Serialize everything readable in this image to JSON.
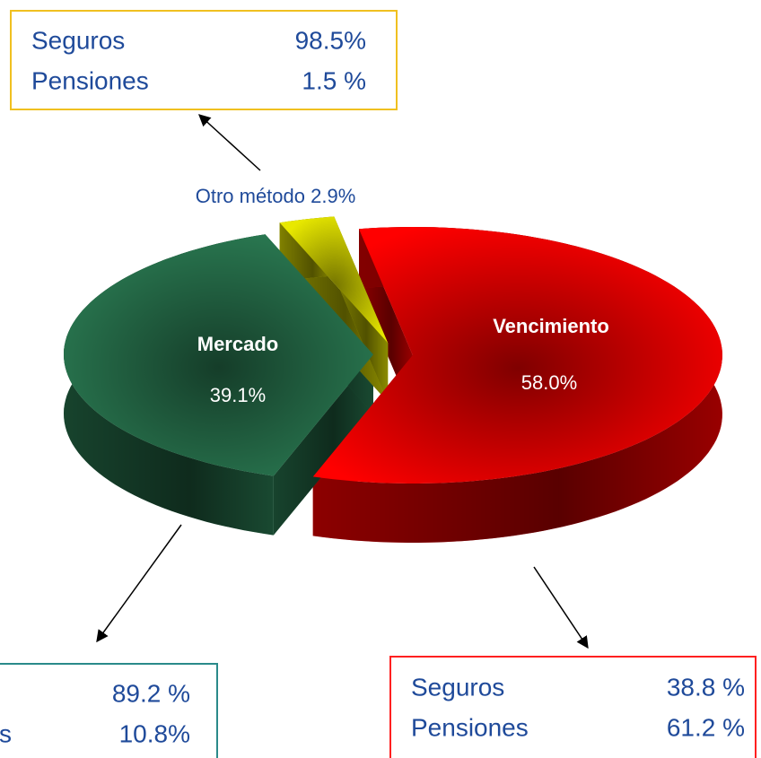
{
  "chart_data": {
    "type": "pie",
    "categories": [
      "Vencimiento",
      "Mercado",
      "Otro método"
    ],
    "values": [
      58.0,
      39.1,
      2.9
    ],
    "value_labels": [
      "58.0%",
      "39.1%",
      "2.9%"
    ],
    "colors": [
      "#ff0000",
      "#2a7a52",
      "#e8e800"
    ],
    "breakdowns": [
      {
        "categories": [
          "Seguros",
          "Pensiones"
        ],
        "values": [
          38.8,
          61.2
        ],
        "value_labels": [
          "38.8 %",
          "61.2 %"
        ],
        "color": "#ff2020"
      },
      {
        "categories": [
          null,
          "s"
        ],
        "values": [
          89.2,
          10.8
        ],
        "value_labels": [
          "89.2 %",
          "10.8%"
        ],
        "color": "#2a8a8a"
      },
      {
        "categories": [
          "Seguros",
          "Pensiones"
        ],
        "values": [
          98.5,
          1.5
        ],
        "value_labels": [
          "98.5%",
          "1.5 %"
        ],
        "color": "#f0c020"
      }
    ]
  }
}
